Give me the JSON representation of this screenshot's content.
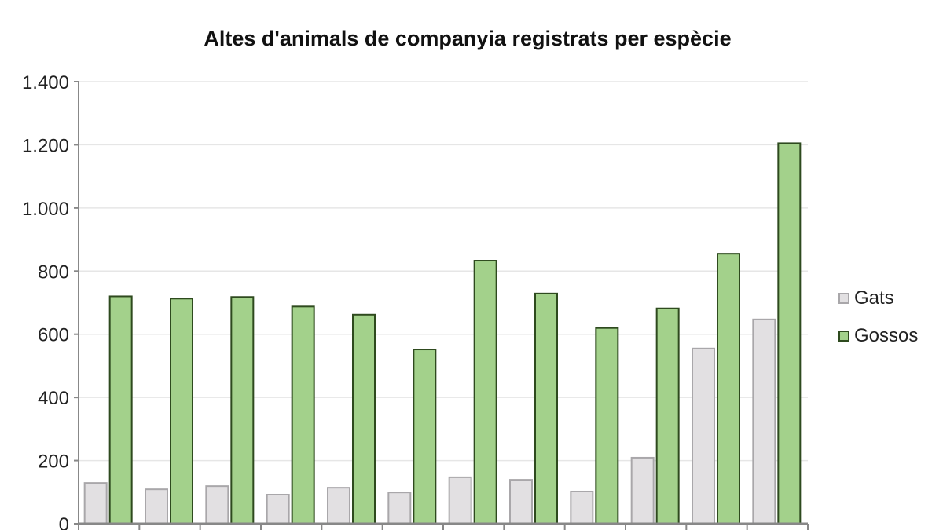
{
  "chart_data": {
    "type": "bar",
    "title": "Altes d'animals de companyia registrats per espècie",
    "xlabel": "",
    "ylabel": "",
    "ylim": [
      0,
      1400
    ],
    "yticks": [
      0,
      200,
      400,
      600,
      800,
      1000,
      1200,
      1400
    ],
    "ytick_labels": [
      "0",
      "200",
      "400",
      "600",
      "800",
      "1.000",
      "1.200",
      "1.400"
    ],
    "grid": true,
    "legend_position": "right",
    "categories": [
      "",
      "",
      "",
      "",
      "",
      "",
      "",
      "",
      "",
      "",
      "",
      ""
    ],
    "series": [
      {
        "name": "Gats",
        "color": "#e2e0e2",
        "edge": "#a9a7aa",
        "values": [
          129,
          109,
          119,
          92,
          114,
          99,
          147,
          139,
          102,
          209,
          555,
          647
        ]
      },
      {
        "name": "Gossos",
        "color": "#a3d18b",
        "edge": "#2e4a1e",
        "values": [
          720,
          713,
          718,
          688,
          662,
          552,
          833,
          729,
          620,
          682,
          855,
          1205
        ]
      }
    ]
  }
}
